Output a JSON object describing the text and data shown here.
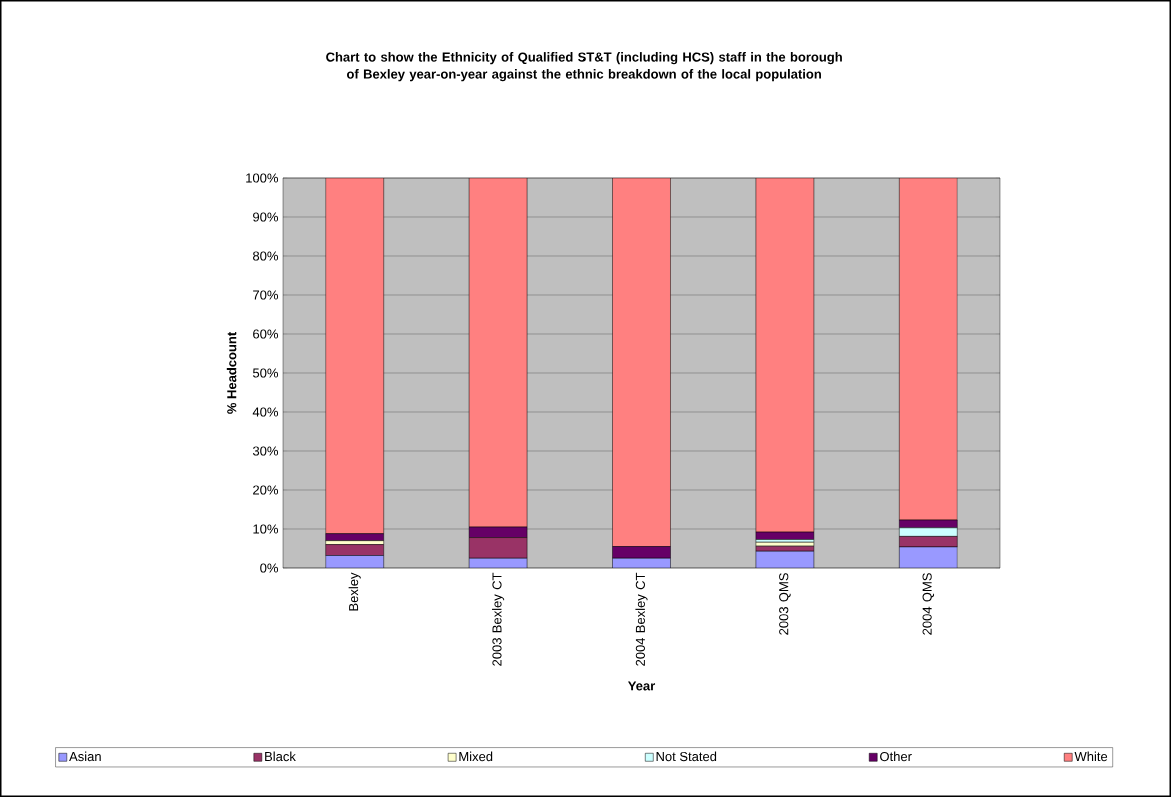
{
  "chart_data": {
    "type": "bar",
    "stacked": true,
    "title": "Chart to show the Ethnicity of Qualified ST&T (including HCS) staff in the borough of Bexley year-on-year against the ethnic breakdown of the local population",
    "xlabel": "Year",
    "ylabel": "% Headcount",
    "categories": [
      "Bexley",
      "2003 Bexley CT",
      "2004 Bexley CT",
      "2003 QMS",
      "2004 QMS"
    ],
    "series": [
      {
        "name": "Asian",
        "color": "#9999ff",
        "values": [
          3.2,
          2.5,
          2.5,
          4.3,
          5.4
        ]
      },
      {
        "name": "Black",
        "color": "#993366",
        "values": [
          2.8,
          5.3,
          0,
          1.3,
          2.7
        ]
      },
      {
        "name": "Mixed",
        "color": "#ffffcc",
        "values": [
          1.0,
          0,
          0,
          1.0,
          0
        ]
      },
      {
        "name": "Not Stated",
        "color": "#ccffff",
        "values": [
          0,
          0,
          0,
          0.7,
          2.2
        ]
      },
      {
        "name": "Other",
        "color": "#660066",
        "values": [
          1.8,
          2.7,
          3.0,
          1.9,
          2.0
        ]
      },
      {
        "name": "White",
        "color": "#ff8080",
        "values": [
          91.2,
          89.5,
          94.5,
          90.8,
          87.7
        ]
      }
    ],
    "ylim": [
      0,
      100
    ],
    "yticks": [
      {
        "value": 0,
        "label": "0%"
      },
      {
        "value": 10,
        "label": "10%"
      },
      {
        "value": 20,
        "label": "20%"
      },
      {
        "value": 30,
        "label": "30%"
      },
      {
        "value": 40,
        "label": "40%"
      },
      {
        "value": 50,
        "label": "50%"
      },
      {
        "value": 60,
        "label": "60%"
      },
      {
        "value": 70,
        "label": "70%"
      },
      {
        "value": 80,
        "label": "80%"
      },
      {
        "value": 90,
        "label": "90%"
      },
      {
        "value": 100,
        "label": "100%"
      }
    ],
    "grid": "y",
    "legend": "bottom"
  }
}
